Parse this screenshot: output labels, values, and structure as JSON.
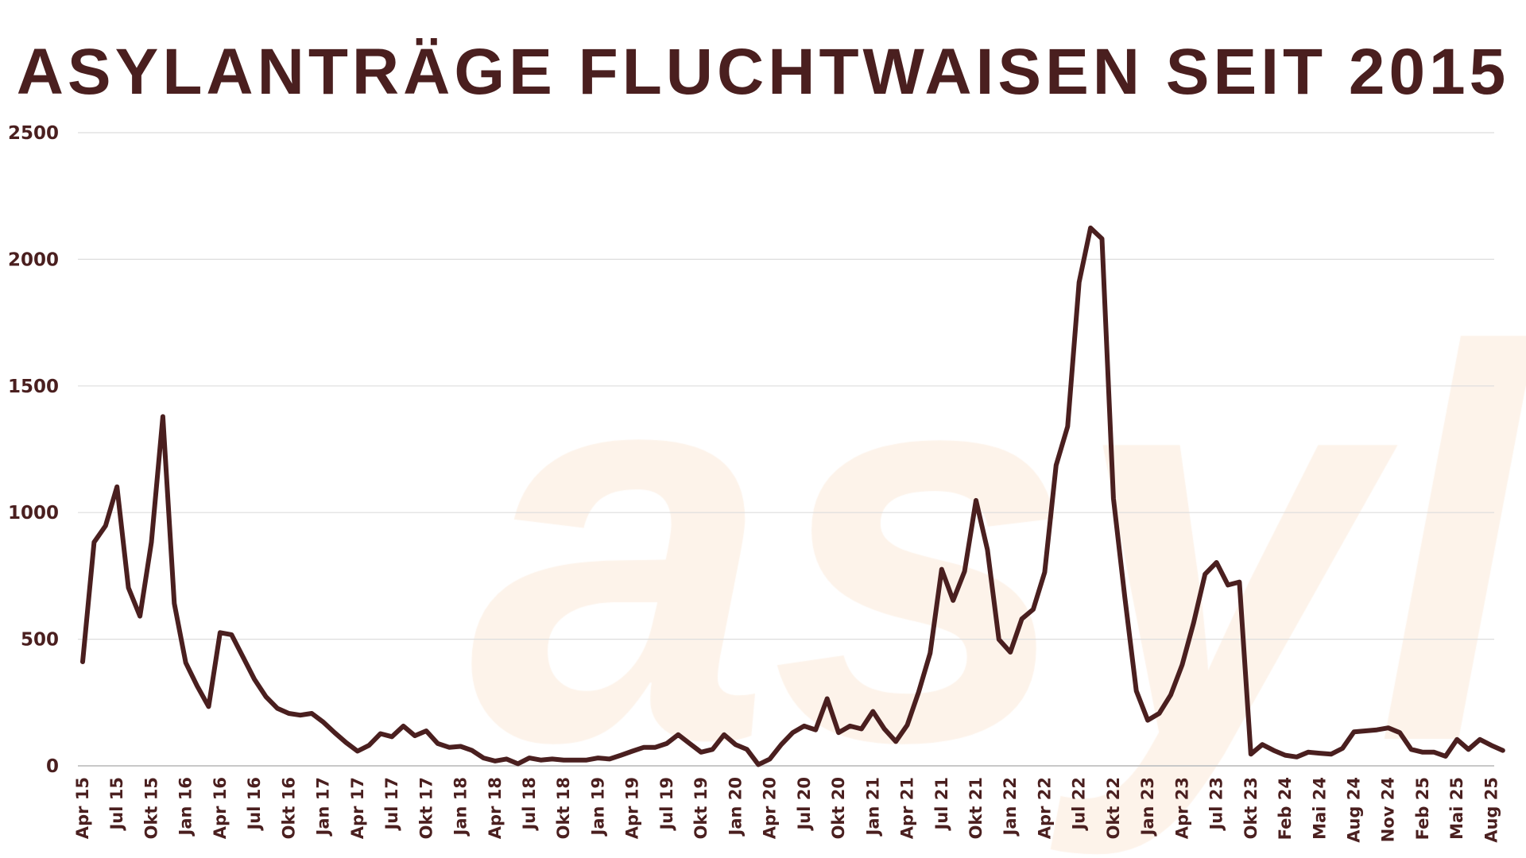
{
  "chart_data": {
    "type": "line",
    "title": "ASYLANTRÄGE FLUCHTWAISEN SEIT 2015",
    "xlabel": "",
    "ylabel": "",
    "ylim": [
      0,
      2500
    ],
    "yticks": [
      0,
      500,
      1000,
      1500,
      2000,
      2500
    ],
    "grid": true,
    "legend": "none",
    "colors": {
      "line": "#4a1f1f",
      "title": "#4a1f1f",
      "grid": "#dddddd",
      "watermark": "#fdf3ea"
    },
    "watermark": "asyl",
    "x_tick_labels": [
      "Apr 15",
      "Jul 15",
      "Okt 15",
      "Jan 16",
      "Apr 16",
      "Jul 16",
      "Okt 16",
      "Jan 17",
      "Apr 17",
      "Jul 17",
      "Okt 17",
      "Jan 18",
      "Apr 18",
      "Jul 18",
      "Okt 18",
      "Jan 19",
      "Apr 19",
      "Jul 19",
      "Okt 19",
      "Jan 20",
      "Apr 20",
      "Jul 20",
      "Okt 20",
      "Jan 21",
      "Apr 21",
      "Jul 21",
      "Okt 21",
      "Jan 22",
      "Apr 22",
      "Jul 22",
      "Okt 22",
      "Jan 23",
      "Apr 23",
      "Jul 23",
      "Okt 23",
      "Feb 24",
      "Mai 24",
      "Aug 24",
      "Nov 24",
      "Feb 25",
      "Mai 25",
      "Aug 25"
    ],
    "values": [
      411,
      883,
      948,
      1102,
      703,
      591,
      883,
      1379,
      641,
      407,
      315,
      234,
      526,
      518,
      430,
      342,
      273,
      227,
      207,
      200,
      207,
      173,
      131,
      92,
      58,
      81,
      127,
      115,
      157,
      119,
      138,
      88,
      73,
      77,
      61,
      31,
      19,
      27,
      8,
      31,
      23,
      27,
      23,
      23,
      23,
      31,
      27,
      42,
      58,
      73,
      73,
      88,
      123,
      88,
      54,
      65,
      123,
      84,
      65,
      5,
      27,
      84,
      131,
      157,
      142,
      265,
      131,
      157,
      146,
      215,
      146,
      96,
      161,
      292,
      445,
      776,
      653,
      768,
      1048,
      853,
      499,
      449,
      580,
      618,
      764,
      1187,
      1340,
      1909,
      2124,
      2081,
      1056,
      664,
      296,
      180,
      207,
      280,
      399,
      565,
      757,
      803,
      714,
      726,
      46,
      84,
      61,
      42,
      35,
      54,
      50,
      46,
      69,
      134,
      138,
      142,
      150,
      131,
      65,
      54,
      54,
      38,
      104,
      65,
      104,
      81,
      61
    ]
  }
}
